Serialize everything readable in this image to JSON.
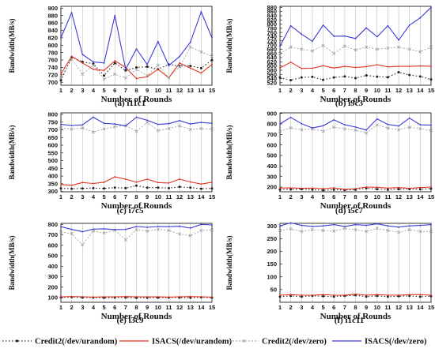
{
  "colors": {
    "credit2_urandom": "#222222",
    "isacs_urandom": "#e0331c",
    "credit2_zero": "#999999",
    "isacs_zero": "#3a3ad6",
    "grid": "#bcbcbc"
  },
  "legend": [
    {
      "label": "Credit2(/dev/urandom)",
      "series_key": "credit2_urandom"
    },
    {
      "label": "ISACS(/dev/urandom)",
      "series_key": "isacs_urandom"
    },
    {
      "label": "Credit2(/dev/zero)",
      "series_key": "credit2_zero"
    },
    {
      "label": "ISACS(/dev/zero)",
      "series_key": "isacs_zero"
    }
  ],
  "chart_data": [
    {
      "type": "line",
      "caption": "(a) i11c1",
      "xlabel": "Number of Rounds",
      "ylabel": "Bandwidth(MB/s)",
      "x": [
        1,
        2,
        3,
        4,
        5,
        6,
        7,
        8,
        9,
        10,
        11,
        12,
        13,
        14,
        15
      ],
      "ylim": [
        692,
        905
      ],
      "yticks": [
        700,
        720,
        740,
        760,
        780,
        800,
        820,
        840,
        860,
        880,
        900
      ],
      "series": [
        {
          "key": "credit2_urandom",
          "name": "Credit2(/dev/urandom)",
          "values": [
            705,
            768,
            755,
            750,
            718,
            752,
            732,
            740,
            742,
            735,
            748,
            744,
            744,
            738,
            760
          ]
        },
        {
          "key": "isacs_urandom",
          "name": "ISACS(/dev/urandom)",
          "values": [
            722,
            770,
            752,
            735,
            732,
            758,
            740,
            710,
            715,
            735,
            712,
            752,
            738,
            725,
            748
          ]
        },
        {
          "key": "credit2_zero",
          "name": "Credit2(/dev/zero)",
          "values": [
            712,
            762,
            722,
            746,
            708,
            722,
            712,
            735,
            718,
            746,
            712,
            742,
            795,
            782,
            770
          ]
        },
        {
          "key": "isacs_zero",
          "name": "ISACS(/dev/zero)",
          "values": [
            820,
            888,
            775,
            755,
            752,
            880,
            735,
            790,
            748,
            810,
            745,
            770,
            808,
            890,
            820
          ]
        }
      ]
    },
    {
      "type": "line",
      "caption": "(b) i9c3",
      "xlabel": "Number of Rounds",
      "ylabel": "Bandwidth(MB/s)",
      "x": [
        1,
        2,
        3,
        4,
        5,
        6,
        7,
        8,
        9,
        10,
        11,
        12,
        13,
        14,
        15
      ],
      "ylim": [
        508,
        885
      ],
      "yticks": [
        520,
        540,
        560,
        580,
        600,
        620,
        640,
        660,
        680,
        700,
        720,
        740,
        760,
        780,
        800,
        820,
        840,
        860,
        880
      ],
      "series": [
        {
          "key": "credit2_urandom",
          "name": "Credit2(/dev/urandom)",
          "values": [
            545,
            532,
            545,
            548,
            534,
            545,
            550,
            542,
            555,
            549,
            546,
            570,
            557,
            550,
            536
          ]
        },
        {
          "key": "isacs_urandom",
          "name": "ISACS(/dev/urandom)",
          "values": [
            590,
            618,
            588,
            589,
            601,
            590,
            598,
            593,
            597,
            606,
            596,
            598,
            598,
            600,
            598
          ]
        },
        {
          "key": "credit2_zero",
          "name": "Credit2(/dev/zero)",
          "values": [
            660,
            690,
            680,
            672,
            698,
            660,
            695,
            676,
            690,
            680,
            686,
            690,
            680,
            668,
            690
          ]
        },
        {
          "key": "isacs_zero",
          "name": "ISACS(/dev/zero)",
          "values": [
            695,
            792,
            752,
            718,
            795,
            742,
            743,
            731,
            782,
            740,
            792,
            724,
            795,
            830,
            880
          ]
        }
      ]
    },
    {
      "type": "line",
      "caption": "(c) i7c5",
      "xlabel": "Number of Rounds",
      "ylabel": "Bandwidth(MB/s)",
      "x": [
        1,
        2,
        3,
        4,
        5,
        6,
        7,
        8,
        9,
        10,
        11,
        12,
        13,
        14,
        15
      ],
      "ylim": [
        298,
        810
      ],
      "yticks": [
        300,
        350,
        400,
        450,
        500,
        550,
        600,
        650,
        700,
        750,
        800
      ],
      "series": [
        {
          "key": "credit2_urandom",
          "name": "Credit2(/dev/urandom)",
          "values": [
            320,
            318,
            320,
            322,
            320,
            325,
            322,
            338,
            325,
            325,
            322,
            330,
            325,
            318,
            320
          ]
        },
        {
          "key": "isacs_urandom",
          "name": "ISACS(/dev/urandom)",
          "values": [
            345,
            340,
            358,
            352,
            360,
            395,
            380,
            360,
            380,
            358,
            355,
            380,
            362,
            348,
            360
          ]
        },
        {
          "key": "credit2_zero",
          "name": "Credit2(/dev/zero)",
          "values": [
            712,
            705,
            712,
            685,
            705,
            720,
            728,
            690,
            748,
            695,
            708,
            725,
            702,
            708,
            705
          ]
        },
        {
          "key": "isacs_zero",
          "name": "ISACS(/dev/zero)",
          "values": [
            735,
            728,
            732,
            782,
            742,
            738,
            725,
            782,
            762,
            735,
            740,
            760,
            738,
            748,
            742
          ]
        }
      ]
    },
    {
      "type": "line",
      "caption": "(d) i5c7",
      "xlabel": "Number of Rounds",
      "ylabel": "Bandwidth(MB/s)",
      "x": [
        1,
        2,
        3,
        4,
        5,
        6,
        7,
        8,
        9,
        10,
        11,
        12,
        13,
        14,
        15
      ],
      "ylim": [
        155,
        905
      ],
      "yticks": [
        200,
        300,
        400,
        500,
        600,
        700,
        800,
        900
      ],
      "series": [
        {
          "key": "credit2_urandom",
          "name": "Credit2(/dev/urandom)",
          "values": [
            175,
            178,
            180,
            175,
            170,
            175,
            172,
            175,
            188,
            180,
            175,
            180,
            180,
            178,
            185
          ]
        },
        {
          "key": "isacs_urandom",
          "name": "ISACS(/dev/urandom)",
          "values": [
            190,
            192,
            188,
            190,
            185,
            192,
            178,
            185,
            200,
            198,
            190,
            195,
            188,
            195,
            200
          ]
        },
        {
          "key": "credit2_zero",
          "name": "Credit2(/dev/zero)",
          "values": [
            730,
            762,
            745,
            752,
            730,
            770,
            752,
            740,
            712,
            790,
            760,
            745,
            768,
            755,
            738
          ]
        },
        {
          "key": "isacs_zero",
          "name": "ISACS(/dev/zero)",
          "values": [
            800,
            862,
            802,
            762,
            782,
            838,
            792,
            770,
            742,
            848,
            795,
            780,
            855,
            792,
            788
          ]
        }
      ]
    },
    {
      "type": "line",
      "caption": "(e) i3c9",
      "xlabel": "Number of Rounds",
      "ylabel": "Bandwidth(MB/s)",
      "x": [
        1,
        2,
        3,
        4,
        5,
        6,
        7,
        8,
        9,
        10,
        11,
        12,
        13,
        14,
        15
      ],
      "ylim": [
        55,
        810
      ],
      "yticks": [
        100,
        200,
        300,
        400,
        500,
        600,
        700,
        800
      ],
      "series": [
        {
          "key": "credit2_urandom",
          "name": "Credit2(/dev/urandom)",
          "values": [
            102,
            105,
            100,
            100,
            98,
            100,
            100,
            97,
            98,
            99,
            100,
            100,
            98,
            102,
            100
          ]
        },
        {
          "key": "isacs_urandom",
          "name": "ISACS(/dev/urandom)",
          "values": [
            108,
            110,
            108,
            105,
            107,
            108,
            110,
            108,
            107,
            108,
            105,
            108,
            110,
            108,
            105
          ]
        },
        {
          "key": "credit2_zero",
          "name": "Credit2(/dev/zero)",
          "values": [
            728,
            712,
            605,
            738,
            718,
            745,
            652,
            750,
            735,
            752,
            742,
            708,
            692,
            742,
            745
          ]
        },
        {
          "key": "isacs_zero",
          "name": "ISACS(/dev/zero)",
          "values": [
            778,
            752,
            730,
            755,
            758,
            750,
            752,
            780,
            772,
            780,
            778,
            782,
            765,
            800,
            795
          ]
        }
      ]
    },
    {
      "type": "line",
      "caption": "(f) i1c11",
      "xlabel": "Number of Rounds",
      "ylabel": "Bandwidth(MB/s)",
      "x": [
        1,
        2,
        3,
        4,
        5,
        6,
        7,
        8,
        9,
        10,
        11,
        12,
        13,
        14,
        15
      ],
      "ylim": [
        0,
        310
      ],
      "yticks": [
        50,
        100,
        150,
        200,
        250,
        300
      ],
      "series": [
        {
          "key": "credit2_urandom",
          "name": "Credit2(/dev/urandom)",
          "values": [
            22,
            25,
            22,
            25,
            24,
            22,
            25,
            28,
            22,
            25,
            22,
            24,
            25,
            22,
            24
          ]
        },
        {
          "key": "isacs_urandom",
          "name": "ISACS(/dev/urandom)",
          "values": [
            28,
            30,
            28,
            28,
            30,
            28,
            28,
            32,
            28,
            30,
            28,
            28,
            30,
            30,
            28
          ]
        },
        {
          "key": "credit2_zero",
          "name": "Credit2(/dev/zero)",
          "values": [
            282,
            288,
            278,
            285,
            282,
            280,
            290,
            285,
            278,
            290,
            282,
            275,
            285,
            278,
            278
          ]
        },
        {
          "key": "isacs_zero",
          "name": "ISACS(/dev/zero)",
          "values": [
            300,
            312,
            302,
            298,
            300,
            305,
            298,
            305,
            302,
            308,
            300,
            295,
            300,
            302,
            305
          ]
        }
      ]
    }
  ]
}
